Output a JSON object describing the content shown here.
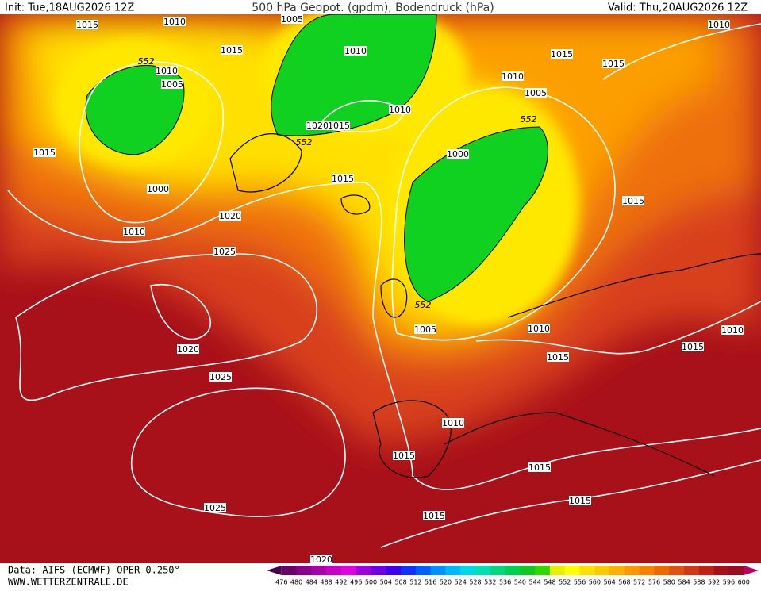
{
  "header": {
    "init": "Init: Tue,18AUG2026 12Z",
    "title": "500 hPa Geopot. (gpdm), Bodendruck (hPa)",
    "valid": "Valid: Thu,20AUG2026 12Z"
  },
  "map": {
    "isobar_labels": [
      "1015",
      "1010",
      "1005",
      "1015",
      "1010",
      "1005",
      "1010",
      "1010",
      "1015",
      "1015",
      "1010",
      "1005",
      "1010",
      "1020",
      "1015",
      "1000",
      "1015",
      "1000",
      "1015",
      "1020",
      "1015",
      "1010",
      "1025",
      "1005",
      "1010",
      "1015",
      "1020",
      "1015",
      "1010",
      "1025",
      "1010",
      "1015",
      "1015",
      "1015",
      "1025",
      "1015",
      "1020"
    ],
    "contour_labels": [
      "552",
      "552",
      "552",
      "552"
    ]
  },
  "legend": {
    "scale": [
      476,
      480,
      484,
      488,
      492,
      496,
      500,
      504,
      508,
      512,
      516,
      520,
      524,
      528,
      532,
      536,
      540,
      544,
      548,
      552,
      556,
      560,
      564,
      568,
      572,
      576,
      580,
      584,
      588,
      592,
      596,
      600
    ],
    "colors": [
      "#4a0050",
      "#6a006a",
      "#8a008a",
      "#aa00aa",
      "#c800c8",
      "#e000e0",
      "#a000e0",
      "#7000e8",
      "#4000f0",
      "#1030ff",
      "#0060ff",
      "#0090ff",
      "#00b8ff",
      "#00d8e8",
      "#00e0b0",
      "#00d880",
      "#00d050",
      "#10c820",
      "#30d800",
      "#e8f000",
      "#ffff00",
      "#ffe000",
      "#ffc800",
      "#ffb000",
      "#ff9800",
      "#f88000",
      "#f06800",
      "#e05010",
      "#d03818",
      "#c02018",
      "#a81018",
      "#980c20",
      "#c00060"
    ]
  },
  "footer": {
    "source": "Data: AIFS (ECMWF) OPER 0.250°",
    "site": "WWW.WETTERZENTRALE.DE"
  }
}
